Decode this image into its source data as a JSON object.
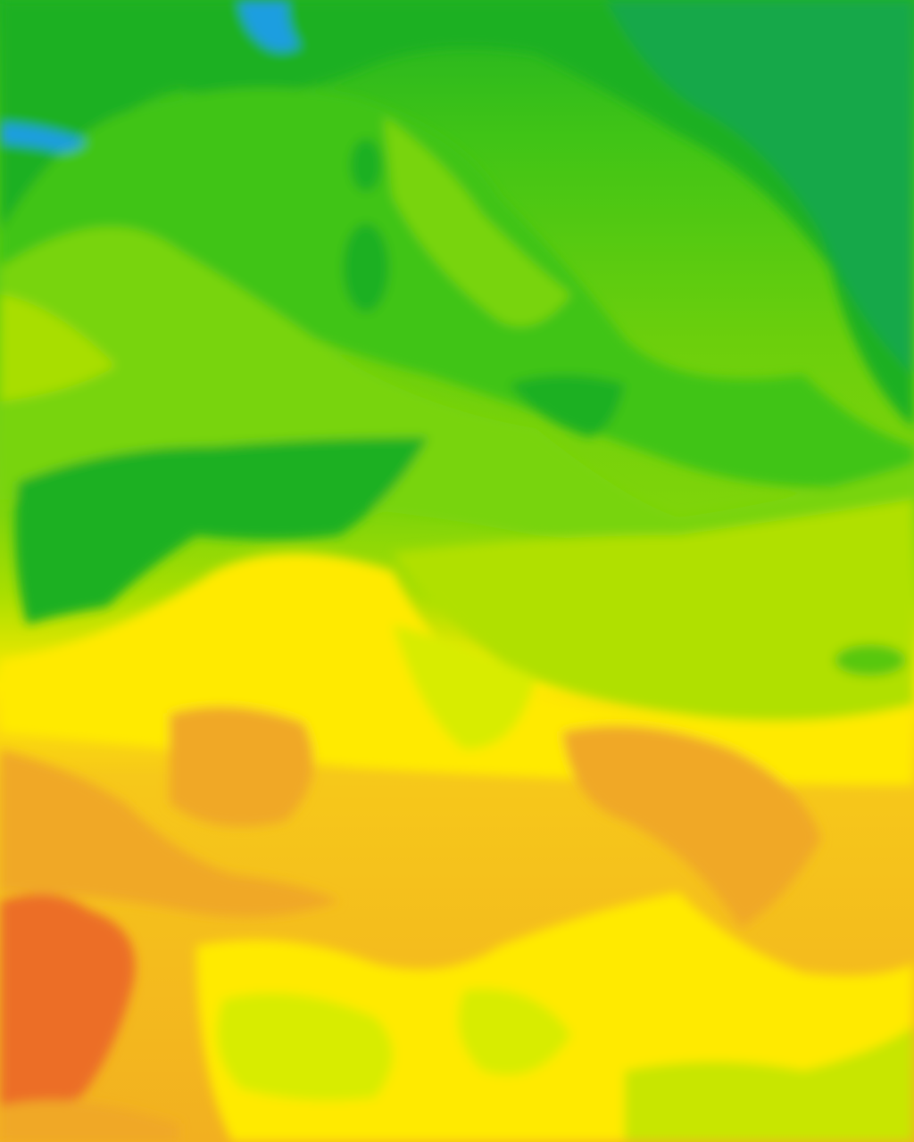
{
  "map": {
    "type": "temperature-contour-tile",
    "palette": {
      "blue": "#1e9ee0",
      "teal_green": "#18a848",
      "dark_green": "#1cb022",
      "green": "#40c416",
      "light_green": "#78d40a",
      "yellow_green": "#b0e000",
      "lime_yellow": "#d8ec00",
      "yellow": "#ffea00",
      "gold": "#f6c81a",
      "orange": "#f0a828",
      "dark_orange": "#ec6e28"
    }
  }
}
